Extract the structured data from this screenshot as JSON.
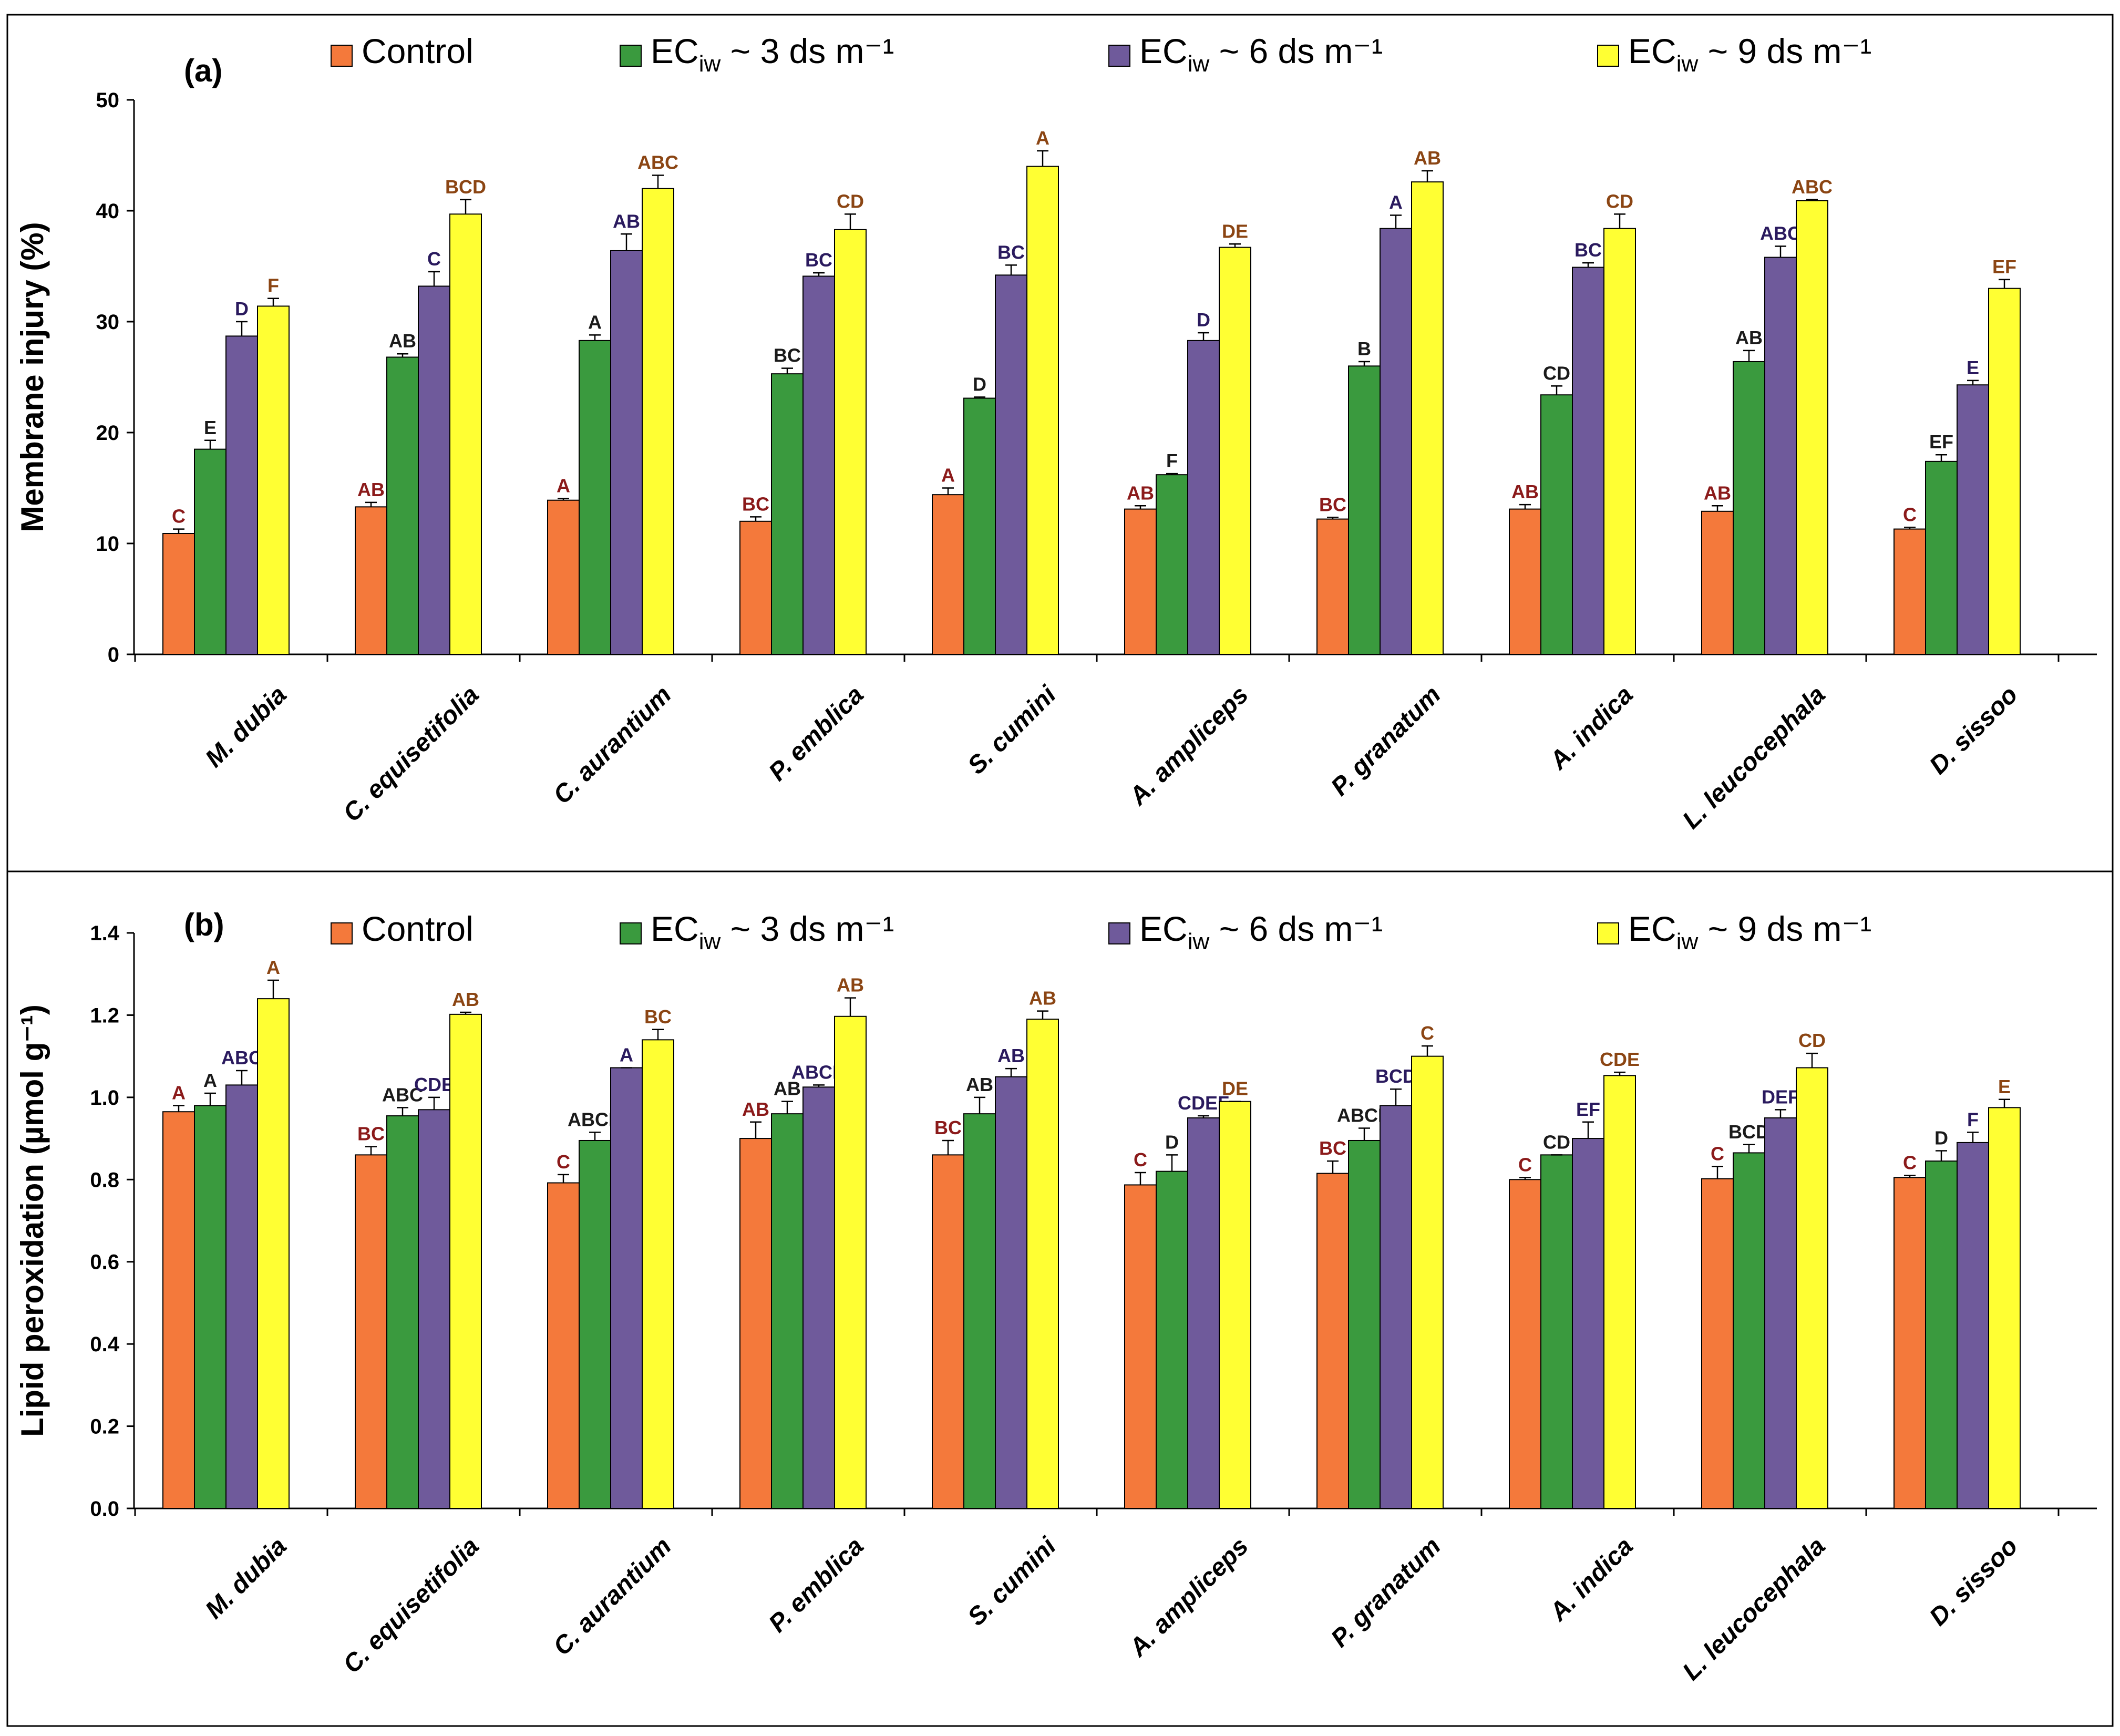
{
  "figure": {
    "legend": [
      {
        "main": "Control",
        "sub": "",
        "rest": "",
        "color": "#F4793B"
      },
      {
        "main": "EC",
        "sub": "iw",
        "rest": " ~ 3 ds m⁻¹",
        "color": "#3A9A3E"
      },
      {
        "main": "EC",
        "sub": "iw",
        "rest": " ~ 6 ds m⁻¹",
        "color": "#6F5A9B"
      },
      {
        "main": "EC",
        "sub": "iw",
        "rest": " ~ 9 ds m⁻¹",
        "color": "#FFFF33"
      }
    ],
    "letter_colors": [
      "#8B1A1A",
      "#1A1A1A",
      "#2A1A5E",
      "#8B4513"
    ]
  },
  "chart_data": [
    {
      "type": "bar",
      "panel_label": "(a)",
      "title": "",
      "xlabel": "",
      "ylabel": "Membrane injury (%)",
      "ylim": [
        0,
        50
      ],
      "yticks": [
        "0",
        "10",
        "20",
        "30",
        "40",
        "50"
      ],
      "grid": false,
      "legend_position": "top",
      "categories": [
        "M. dubia",
        "C. equisetifolia",
        "C. aurantium",
        "P. emblica",
        "S. cumini",
        "A. ampliceps",
        "P. granatum",
        "A. indica",
        "L. leucocephala",
        "D. sissoo"
      ],
      "series": [
        {
          "name": "Control",
          "values": [
            10.9,
            13.3,
            13.9,
            12.0,
            14.4,
            13.1,
            12.2,
            13.1,
            12.9,
            11.3
          ],
          "errors": [
            0.4,
            0.4,
            0.15,
            0.4,
            0.6,
            0.3,
            0.15,
            0.4,
            0.5,
            0.15
          ],
          "letters": [
            "C",
            "AB",
            "A",
            "BC",
            "A",
            "AB",
            "BC",
            "AB",
            "AB",
            "C"
          ]
        },
        {
          "name": "EC iw ~ 3 ds m⁻¹",
          "values": [
            18.5,
            26.8,
            28.3,
            25.3,
            23.1,
            16.2,
            26.0,
            23.4,
            26.4,
            17.4
          ],
          "errors": [
            0.8,
            0.3,
            0.5,
            0.5,
            0.1,
            0.1,
            0.4,
            0.8,
            1.0,
            0.6
          ],
          "letters": [
            "E",
            "AB",
            "A",
            "BC",
            "D",
            "F",
            "B",
            "CD",
            "AB",
            "EF"
          ]
        },
        {
          "name": "EC iw ~ 6 ds m⁻¹",
          "values": [
            28.7,
            33.2,
            36.4,
            34.1,
            34.2,
            28.3,
            38.4,
            34.9,
            35.8,
            24.3
          ],
          "errors": [
            1.3,
            1.3,
            1.5,
            0.3,
            0.9,
            0.7,
            1.2,
            0.4,
            1.0,
            0.4
          ],
          "letters": [
            "D",
            "C",
            "AB",
            "BC",
            "BC",
            "D",
            "A",
            "BC",
            "ABC",
            "E"
          ]
        },
        {
          "name": "EC iw ~ 9 ds m⁻¹",
          "values": [
            31.4,
            39.7,
            42.0,
            38.3,
            44.0,
            36.7,
            42.6,
            38.4,
            40.9,
            33.0
          ],
          "errors": [
            0.7,
            1.3,
            1.2,
            1.4,
            1.4,
            0.3,
            1.0,
            1.3,
            0.1,
            0.8
          ],
          "letters": [
            "F",
            "BCD",
            "ABC",
            "CD",
            "A",
            "DE",
            "AB",
            "CD",
            "ABC",
            "EF"
          ]
        }
      ]
    },
    {
      "type": "bar",
      "panel_label": "(b)",
      "title": "",
      "xlabel": "",
      "ylabel": "Lipid peroxidation (µmol g⁻¹)",
      "ylim": [
        0,
        1.4
      ],
      "yticks": [
        "0.0",
        "0.2",
        "0.4",
        "0.6",
        "0.8",
        "1.0",
        "1.2",
        "1.4"
      ],
      "grid": false,
      "legend_position": "top",
      "categories": [
        "M. dubia",
        "C. equisetifolia",
        "C. aurantium",
        "P. emblica",
        "S. cumini",
        "A. ampliceps",
        "P. granatum",
        "A. indica",
        "L. leucocephala",
        "D. sissoo"
      ],
      "series": [
        {
          "name": "Control",
          "values": [
            0.965,
            0.86,
            0.792,
            0.9,
            0.86,
            0.787,
            0.815,
            0.8,
            0.802,
            0.805
          ],
          "errors": [
            0.015,
            0.02,
            0.02,
            0.04,
            0.035,
            0.03,
            0.03,
            0.005,
            0.03,
            0.005
          ],
          "letters": [
            "A",
            "BC",
            "C",
            "AB",
            "BC",
            "C",
            "BC",
            "C",
            "C",
            "C"
          ]
        },
        {
          "name": "EC iw ~ 3 ds m⁻¹",
          "values": [
            0.98,
            0.955,
            0.895,
            0.96,
            0.96,
            0.82,
            0.895,
            0.86,
            0.865,
            0.845
          ],
          "errors": [
            0.03,
            0.02,
            0.02,
            0.03,
            0.04,
            0.04,
            0.03,
            0.0,
            0.02,
            0.025
          ],
          "letters": [
            "A",
            "ABC",
            "ABCD",
            "AB",
            "AB",
            "D",
            "ABCD",
            "CD",
            "BCD",
            "D"
          ]
        },
        {
          "name": "EC iw ~ 6 ds m⁻¹",
          "values": [
            1.03,
            0.97,
            1.072,
            1.025,
            1.05,
            0.95,
            0.98,
            0.9,
            0.95,
            0.89
          ],
          "errors": [
            0.035,
            0.03,
            0.0,
            0.005,
            0.02,
            0.005,
            0.04,
            0.04,
            0.02,
            0.025
          ],
          "letters": [
            "ABC",
            "CDE",
            "A",
            "ABCD",
            "AB",
            "CDEF",
            "BCD",
            "EF",
            "DEF",
            "F"
          ]
        },
        {
          "name": "EC iw ~ 9 ds m⁻¹",
          "values": [
            1.24,
            1.202,
            1.14,
            1.197,
            1.19,
            0.99,
            1.1,
            1.053,
            1.072,
            0.975
          ],
          "errors": [
            0.045,
            0.005,
            0.025,
            0.045,
            0.02,
            0.0,
            0.025,
            0.008,
            0.035,
            0.02
          ],
          "letters": [
            "A",
            "AB",
            "BC",
            "AB",
            "AB",
            "DE",
            "C",
            "CDE",
            "CD",
            "E"
          ]
        }
      ]
    }
  ]
}
